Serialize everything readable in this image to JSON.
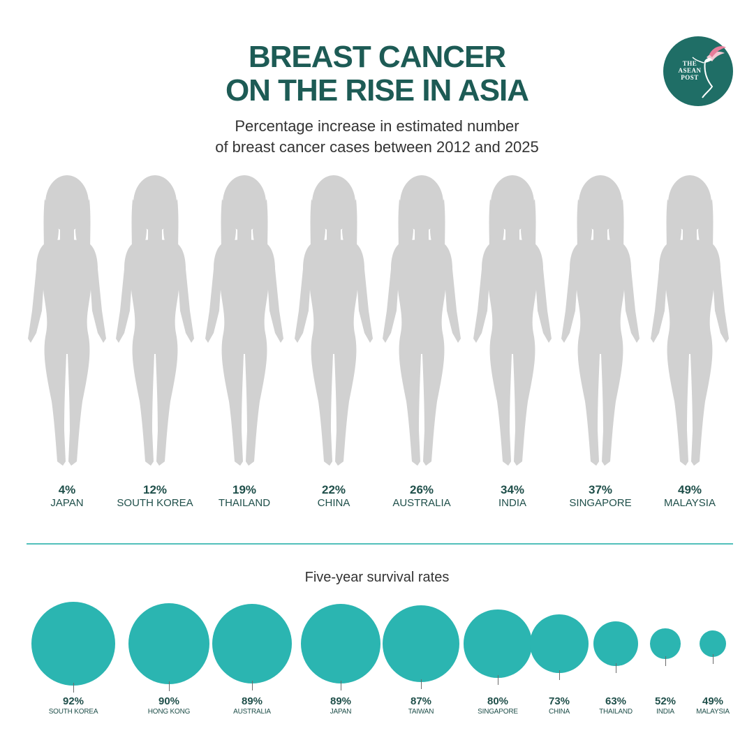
{
  "title_line1": "BREAST CANCER",
  "title_line2": "ON THE RISE IN ASIA",
  "subtitle_line1": "Percentage increase in estimated number",
  "subtitle_line2": "of breast cancer cases between 2012 and 2025",
  "logo": {
    "line1": "THE",
    "line2": "ASEAN",
    "line3": "POST"
  },
  "survival_title": "Five-year survival rates",
  "colors": {
    "accent": "#2bb5b1",
    "figure_grey": "#d1d1d1",
    "title": "#1d5b55",
    "logo_bg": "#1f6e66"
  },
  "chart_data": [
    {
      "type": "bar",
      "title": "Percentage increase in estimated number of breast cancer cases between 2012 and 2025",
      "categories": [
        "JAPAN",
        "SOUTH KOREA",
        "THAILAND",
        "CHINA",
        "AUSTRALIA",
        "INDIA",
        "SINGAPORE",
        "MALAYSIA"
      ],
      "values": [
        4,
        12,
        19,
        22,
        26,
        34,
        37,
        49
      ],
      "labels": [
        "4%",
        "12%",
        "19%",
        "22%",
        "26%",
        "34%",
        "37%",
        "49%"
      ],
      "unit": "%"
    },
    {
      "type": "bar",
      "title": "Five-year survival rates",
      "categories": [
        "SOUTH KOREA",
        "HONG KONG",
        "AUSTRALIA",
        "JAPAN",
        "TAIWAN",
        "SINGAPORE",
        "CHINA",
        "THAILAND",
        "INDIA",
        "MALAYSIA"
      ],
      "values": [
        92,
        90,
        89,
        89,
        87,
        80,
        73,
        63,
        52,
        49
      ],
      "labels": [
        "92%",
        "90%",
        "89%",
        "89%",
        "87%",
        "80%",
        "73%",
        "63%",
        "52%",
        "49%"
      ],
      "unit": "%"
    }
  ]
}
